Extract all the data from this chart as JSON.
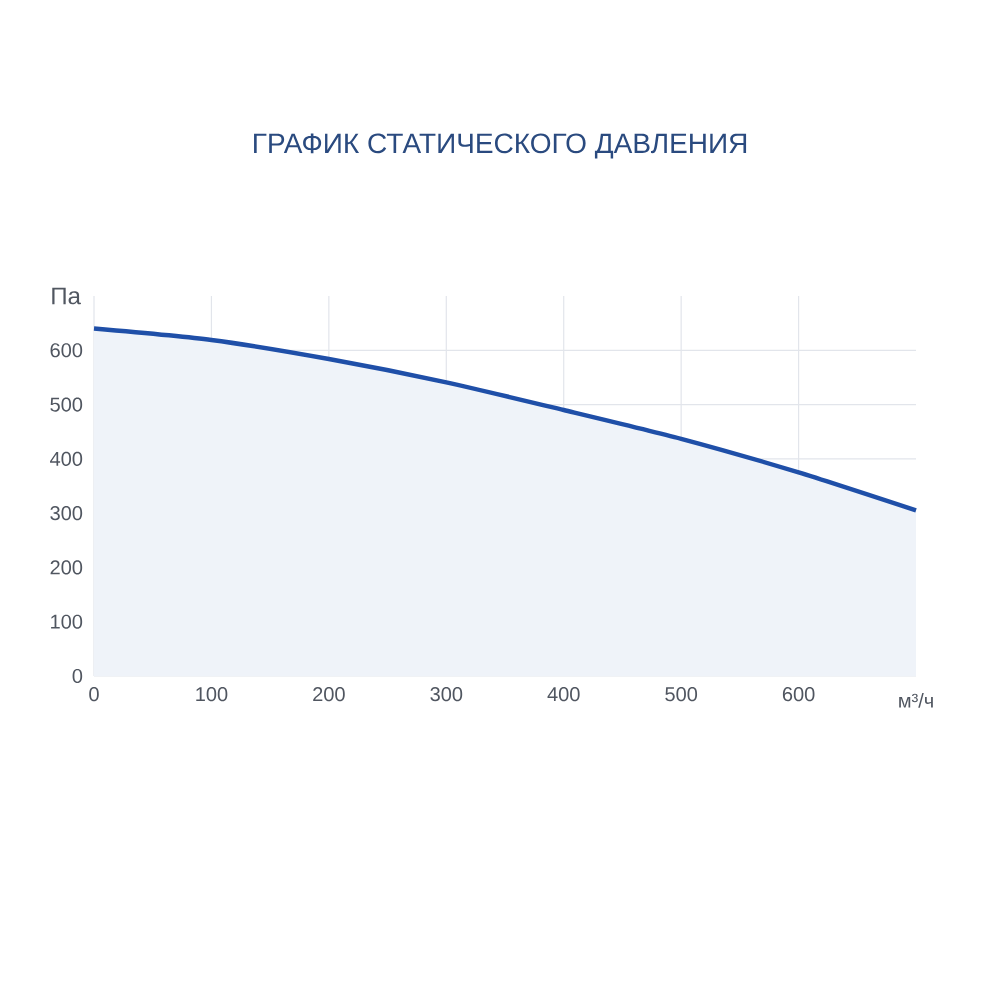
{
  "chart_data": {
    "type": "area",
    "title": "ГРАФИК СТАТИЧЕСКОГО ДАВЛЕНИЯ",
    "xlabel": "м³/ч",
    "ylabel": "Па",
    "x": [
      0,
      100,
      200,
      300,
      400,
      500,
      600,
      700
    ],
    "series": [
      {
        "color": "#1f4fa8",
        "values": [
          640,
          619,
          584,
          541,
          490,
          437,
          375,
          305
        ]
      }
    ],
    "xlim": [
      0,
      700
    ],
    "ylim": [
      0,
      700
    ],
    "xticks": [
      0,
      100,
      200,
      300,
      400,
      500,
      600
    ],
    "yticks": [
      0,
      100,
      200,
      300,
      400,
      500,
      600
    ],
    "grid": true,
    "marker": "none",
    "line_style": "solid"
  }
}
